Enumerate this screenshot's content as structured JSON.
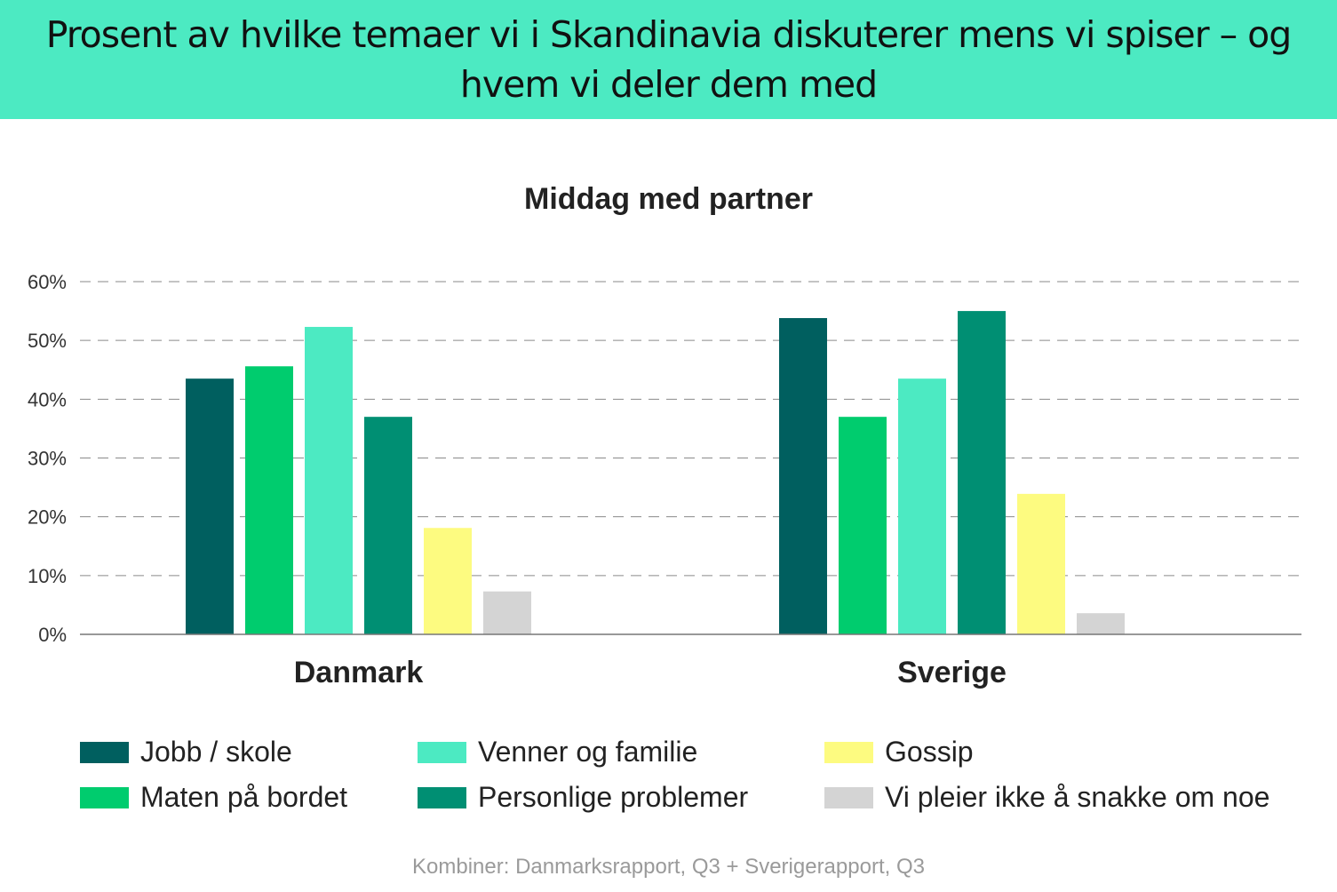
{
  "header": {
    "title": "Prosent av hvilke temaer vi i Skandinavia diskuterer mens vi spiser – og hvem vi deler dem med"
  },
  "chart_data": {
    "type": "bar",
    "title": "Middag med partner",
    "categories": [
      "Danmark",
      "Sverige"
    ],
    "ylim": [
      0,
      60
    ],
    "yticks": [
      "0%",
      "10%",
      "20%",
      "30%",
      "40%",
      "50%",
      "60%"
    ],
    "grid": true,
    "legend_position": "bottom",
    "series": [
      {
        "name": "Jobb / skole",
        "color": "#005f5f",
        "values": [
          43.5,
          53.8
        ]
      },
      {
        "name": "Maten på bordet",
        "color": "#00cc6e",
        "values": [
          45.6,
          37.0
        ]
      },
      {
        "name": "Venner og familie",
        "color": "#4ceac2",
        "values": [
          52.3,
          43.5
        ]
      },
      {
        "name": "Personlige problemer",
        "color": "#008f73",
        "values": [
          37.0,
          55.0
        ]
      },
      {
        "name": "Gossip",
        "color": "#fdfb80",
        "values": [
          18.1,
          23.9
        ]
      },
      {
        "name": "Vi pleier ikke å snakke om noe",
        "color": "#d4d4d4",
        "values": [
          7.3,
          3.6
        ]
      }
    ]
  },
  "footer": {
    "source": "Kombiner: Danmarksrapport, Q3 + Sverigerapport, Q3"
  }
}
